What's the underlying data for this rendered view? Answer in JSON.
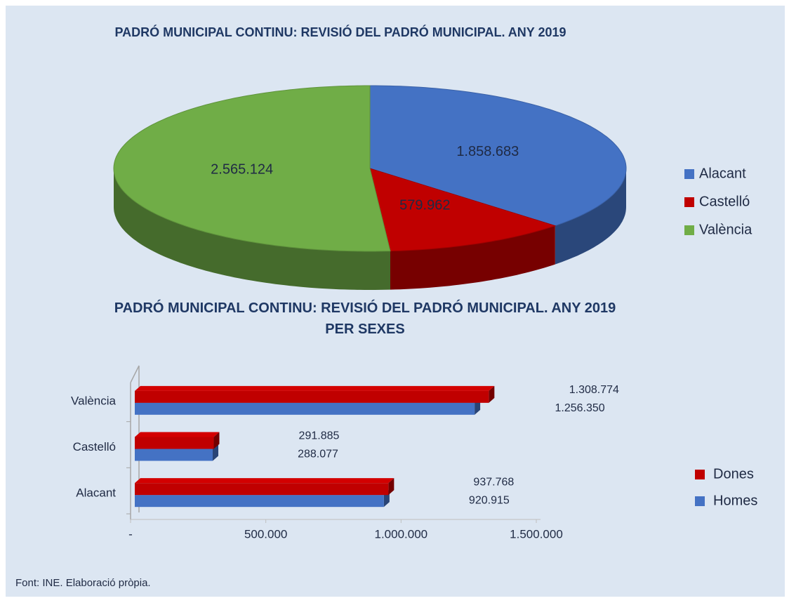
{
  "chart_data": [
    {
      "type": "pie3d",
      "title": "PADRÓ MUNICIPAL CONTINU: REVISIÓ DEL PADRÓ MUNICIPAL. ANY 2019",
      "categories": [
        "Alacant",
        "Castelló",
        "València"
      ],
      "values": [
        1858683,
        579962,
        2565124
      ],
      "value_labels": [
        "1.858.683",
        "579.962",
        "2.565.124"
      ],
      "colors": [
        "#4472c4",
        "#c00000",
        "#70ad47"
      ],
      "legend": "right"
    },
    {
      "type": "hbar3d",
      "title": "PADRÓ MUNICIPAL CONTINU: REVISIÓ DEL PADRÓ MUNICIPAL. ANY 2019 PER SEXES",
      "categories": [
        "Alacant",
        "Castelló",
        "València"
      ],
      "series": [
        {
          "name": "Homes",
          "color": "#4472c4",
          "values": [
            920915,
            288077,
            1256350
          ],
          "value_labels": [
            "920.915",
            "288.077",
            "1.256.350"
          ]
        },
        {
          "name": "Dones",
          "color": "#c00000",
          "values": [
            937768,
            291885,
            1308774
          ],
          "value_labels": [
            "937.768",
            "291.885",
            "1.308.774"
          ]
        }
      ],
      "xlim": [
        0,
        1500000
      ],
      "xticks": [
        {
          "value": 0,
          "label": "-"
        },
        {
          "value": 500000,
          "label": "500.000"
        },
        {
          "value": 1000000,
          "label": "1.000.000"
        },
        {
          "value": 1500000,
          "label": "1.500.000"
        }
      ],
      "legend": "right"
    }
  ],
  "source": "Font: INE. Elaboració pròpia."
}
